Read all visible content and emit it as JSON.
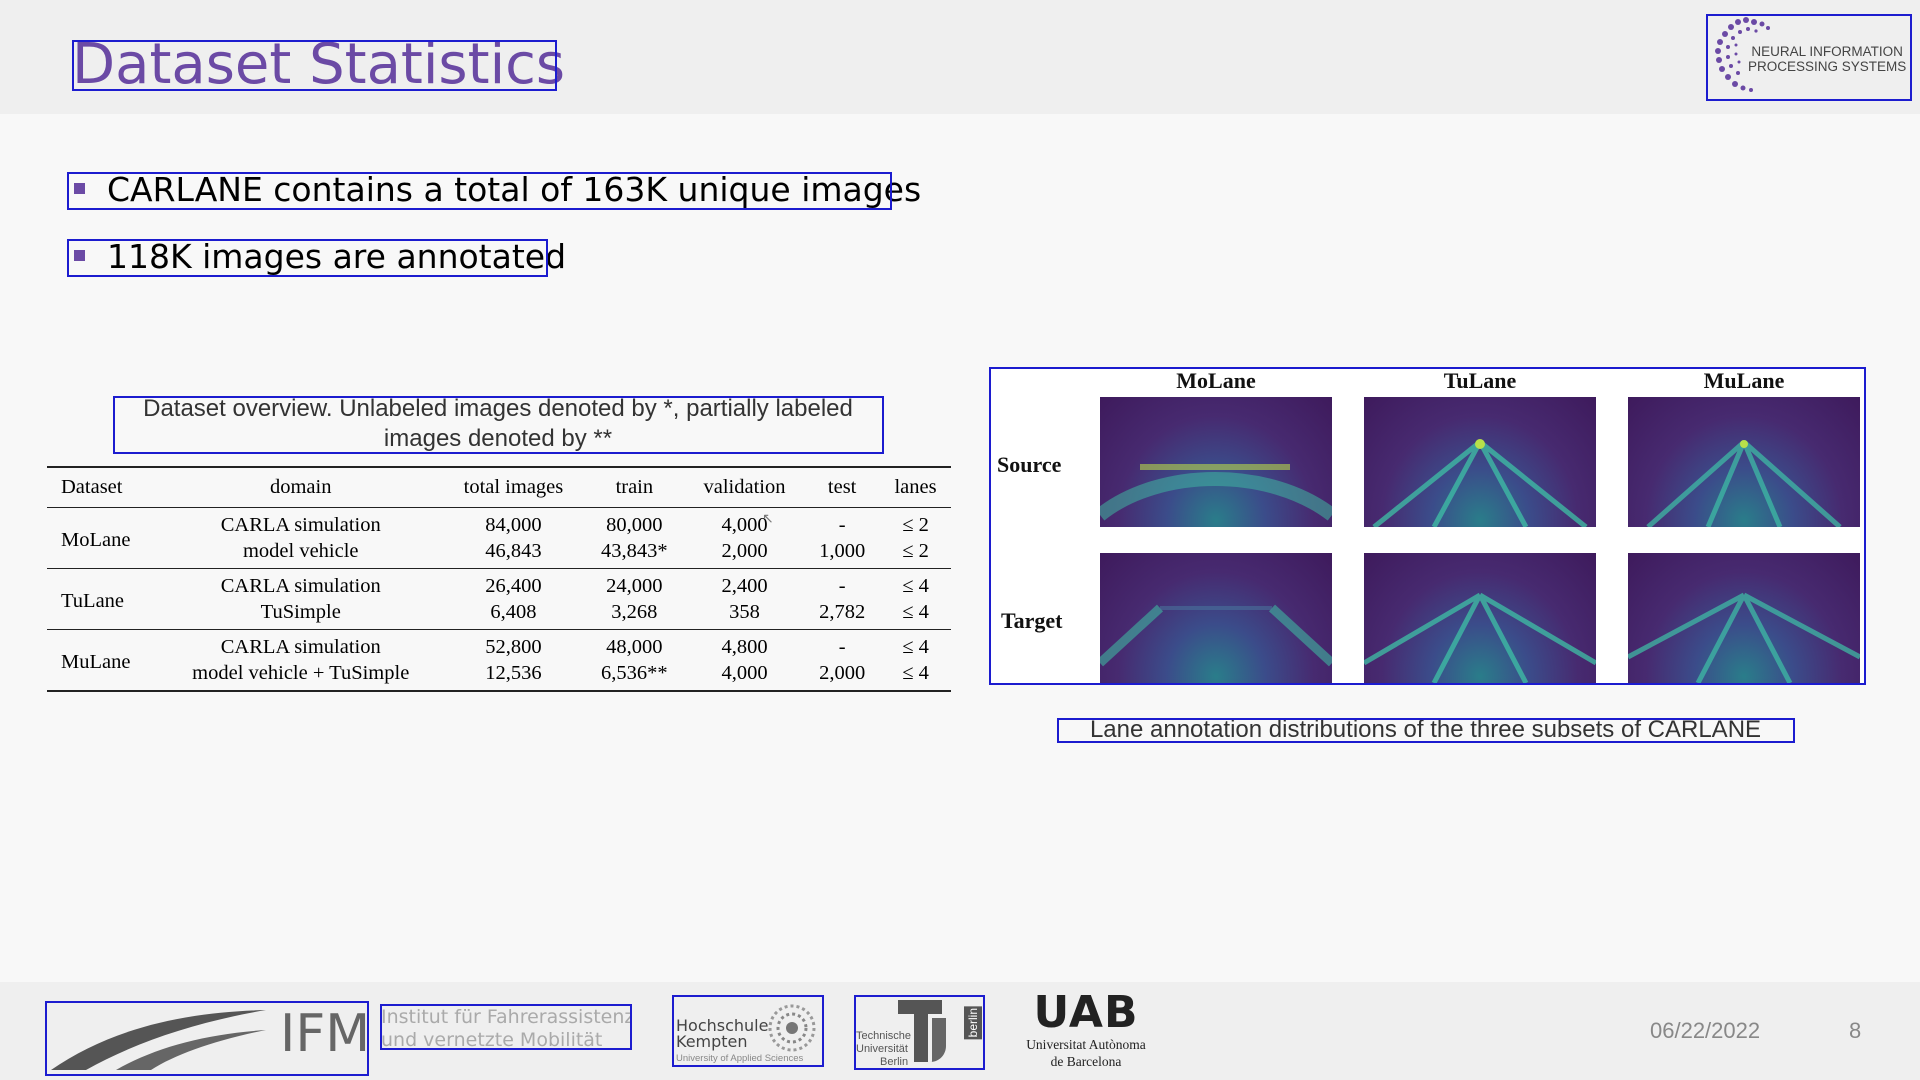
{
  "slide": {
    "title": "Dataset Statistics",
    "bullets": [
      "CARLANE contains a total of 163K unique images",
      "118K images are annotated"
    ],
    "date": "06/22/2022",
    "page_number": "8",
    "accent_color": "#6b4aa5"
  },
  "table": {
    "caption": "Dataset overview. Unlabeled images denoted by *, partially labeled images denoted by **",
    "columns": [
      "Dataset",
      "domain",
      "total images",
      "train",
      "validation",
      "test",
      "lanes"
    ],
    "groups": [
      {
        "dataset": "MoLane",
        "rows": [
          [
            "CARLA simulation",
            "84,000",
            "80,000",
            "4,000",
            "-",
            "≤ 2"
          ],
          [
            "model vehicle",
            "46,843",
            "43,843*",
            "2,000",
            "1,000",
            "≤ 2"
          ]
        ]
      },
      {
        "dataset": "TuLane",
        "rows": [
          [
            "CARLA simulation",
            "26,400",
            "24,000",
            "2,400",
            "-",
            "≤ 4"
          ],
          [
            "TuSimple",
            "6,408",
            "3,268",
            "358",
            "2,782",
            "≤ 4"
          ]
        ]
      },
      {
        "dataset": "MuLane",
        "rows": [
          [
            "CARLA simulation",
            "52,800",
            "48,000",
            "4,800",
            "-",
            "≤ 4"
          ],
          [
            "model vehicle + TuSimple",
            "12,536",
            "6,536**",
            "4,000",
            "2,000",
            "≤ 4"
          ]
        ]
      }
    ]
  },
  "figure": {
    "column_headers": [
      "MoLane",
      "TuLane",
      "MuLane"
    ],
    "row_headers": [
      "Source",
      "Target"
    ],
    "caption": "Lane annotation distributions of the three subsets of CARLANE"
  },
  "logos": {
    "neurips_line1": "NEURAL INFORMATION",
    "neurips_line2": "PROCESSING SYSTEMS",
    "ifm_mark": "IFM",
    "ifm_line1": "Institut für Fahrerassistenz",
    "ifm_line2": "und vernetzte Mobilität",
    "hsk_line1": "Hochschule",
    "hsk_line2": "Kempten",
    "hsk_line3": "University of Applied Sciences",
    "tu_line1": "Technische",
    "tu_line2": "Universität",
    "tu_line3": "Berlin",
    "tu_side": "berlin",
    "uab_mark": "UAB",
    "uab_line1": "Universitat Autònoma",
    "uab_line2": "de Barcelona"
  }
}
